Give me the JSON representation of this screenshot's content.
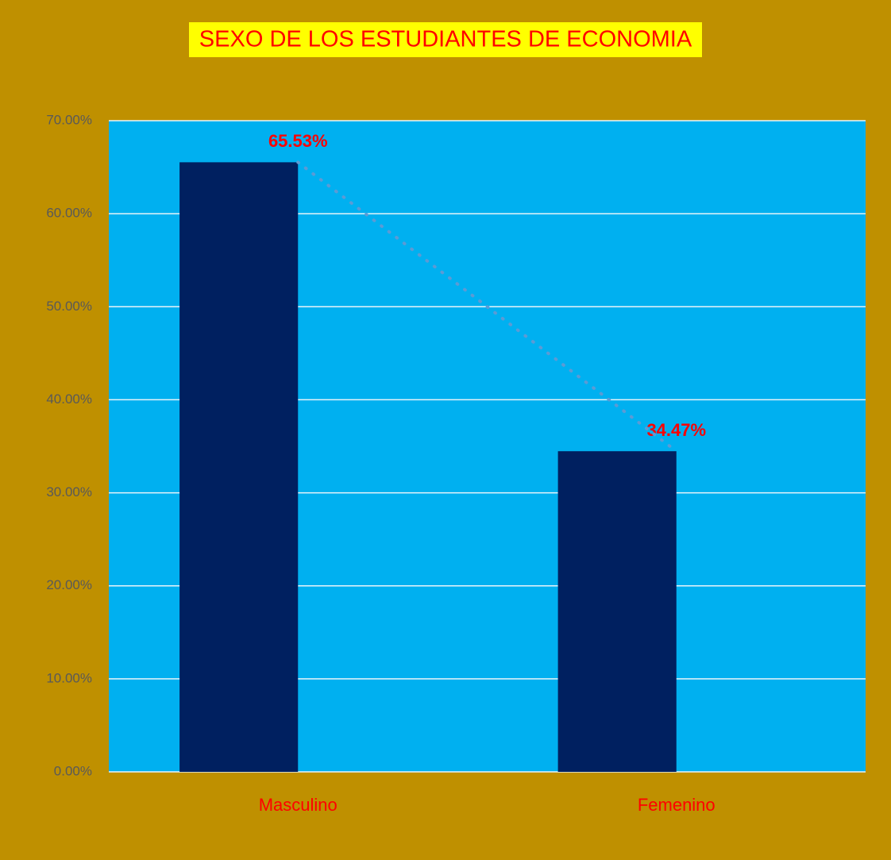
{
  "chart_data": {
    "type": "bar",
    "title": "SEXO DE LOS ESTUDIANTES DE ECONOMIA",
    "categories": [
      "Masculino",
      "Femenino"
    ],
    "values": [
      65.53,
      34.47
    ],
    "value_labels": [
      "65.53%",
      "34.47%"
    ],
    "color": "#002060",
    "ylim": [
      0,
      70
    ],
    "yticks": [
      {
        "value": 0,
        "label": "0.00%"
      },
      {
        "value": 10,
        "label": "10.00%"
      },
      {
        "value": 20,
        "label": "20.00%"
      },
      {
        "value": 30,
        "label": "30.00%"
      },
      {
        "value": 40,
        "label": "40.00%"
      },
      {
        "value": 50,
        "label": "50.00%"
      },
      {
        "value": 60,
        "label": "60.00%"
      },
      {
        "value": 70,
        "label": "70.00%"
      }
    ],
    "grid": true,
    "trendline": true
  }
}
